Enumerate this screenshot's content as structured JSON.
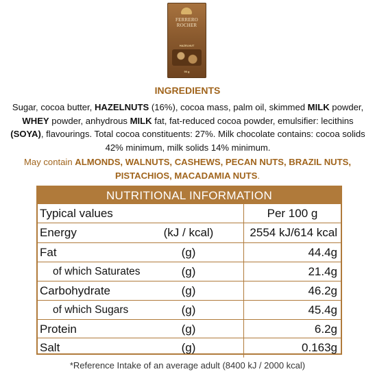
{
  "product": {
    "brand_line1": "FERRERO",
    "brand_line2": "ROCHER",
    "flavour": "HAZELNUT",
    "weight": "90 g"
  },
  "ingredients": {
    "heading": "INGREDIENTS",
    "segments": [
      {
        "text": "Sugar, cocoa butter, ",
        "bold": false
      },
      {
        "text": "HAZELNUTS",
        "bold": true
      },
      {
        "text": " (16%), cocoa mass, palm oil, skimmed ",
        "bold": false
      },
      {
        "text": "MILK",
        "bold": true
      },
      {
        "text": " powder, ",
        "bold": false
      },
      {
        "text": "WHEY",
        "bold": true
      },
      {
        "text": " powder, anhydrous ",
        "bold": false
      },
      {
        "text": "MILK",
        "bold": true
      },
      {
        "text": " fat, fat-reduced cocoa powder, emulsifier: lecithins ",
        "bold": false
      },
      {
        "text": "(SOYA)",
        "bold": true
      },
      {
        "text": ", flavourings. Total cocoa constituents: 27%. Milk chocolate contains: cocoa solids 42% minimum, milk solids 14% minimum.",
        "bold": false
      }
    ]
  },
  "allergens": {
    "segments": [
      {
        "text": "May contain ",
        "bold": false
      },
      {
        "text": "ALMONDS, WALNUTS, CASHEWS, PECAN NUTS, BRAZIL NUTS, PISTACHIOS, MACADAMIA NUTS",
        "bold": true
      },
      {
        "text": ".",
        "bold": false
      }
    ]
  },
  "nutrition": {
    "title": "NUTRITIONAL INFORMATION",
    "header": {
      "name": "Typical values",
      "value": "Per 100 g"
    },
    "rows": [
      {
        "name": "Energy",
        "unit": "(kJ / kcal)",
        "value": "2554 kJ/614 kcal",
        "sub": false
      },
      {
        "name": "Fat",
        "unit": "(g)",
        "value": "44.4g",
        "sub": false
      },
      {
        "name": "of which Saturates",
        "unit": "(g)",
        "value": "21.4g",
        "sub": true
      },
      {
        "name": "Carbohydrate",
        "unit": "(g)",
        "value": "46.2g",
        "sub": false
      },
      {
        "name": "of which Sugars",
        "unit": "(g)",
        "value": "45.4g",
        "sub": true
      },
      {
        "name": "Protein",
        "unit": "(g)",
        "value": "6.2g",
        "sub": false
      },
      {
        "name": "Salt",
        "unit": "(g)",
        "value": "0.163g",
        "sub": false
      }
    ]
  },
  "footnote": "*Reference Intake of an average adult (8400 kJ / 2000 kcal)"
}
